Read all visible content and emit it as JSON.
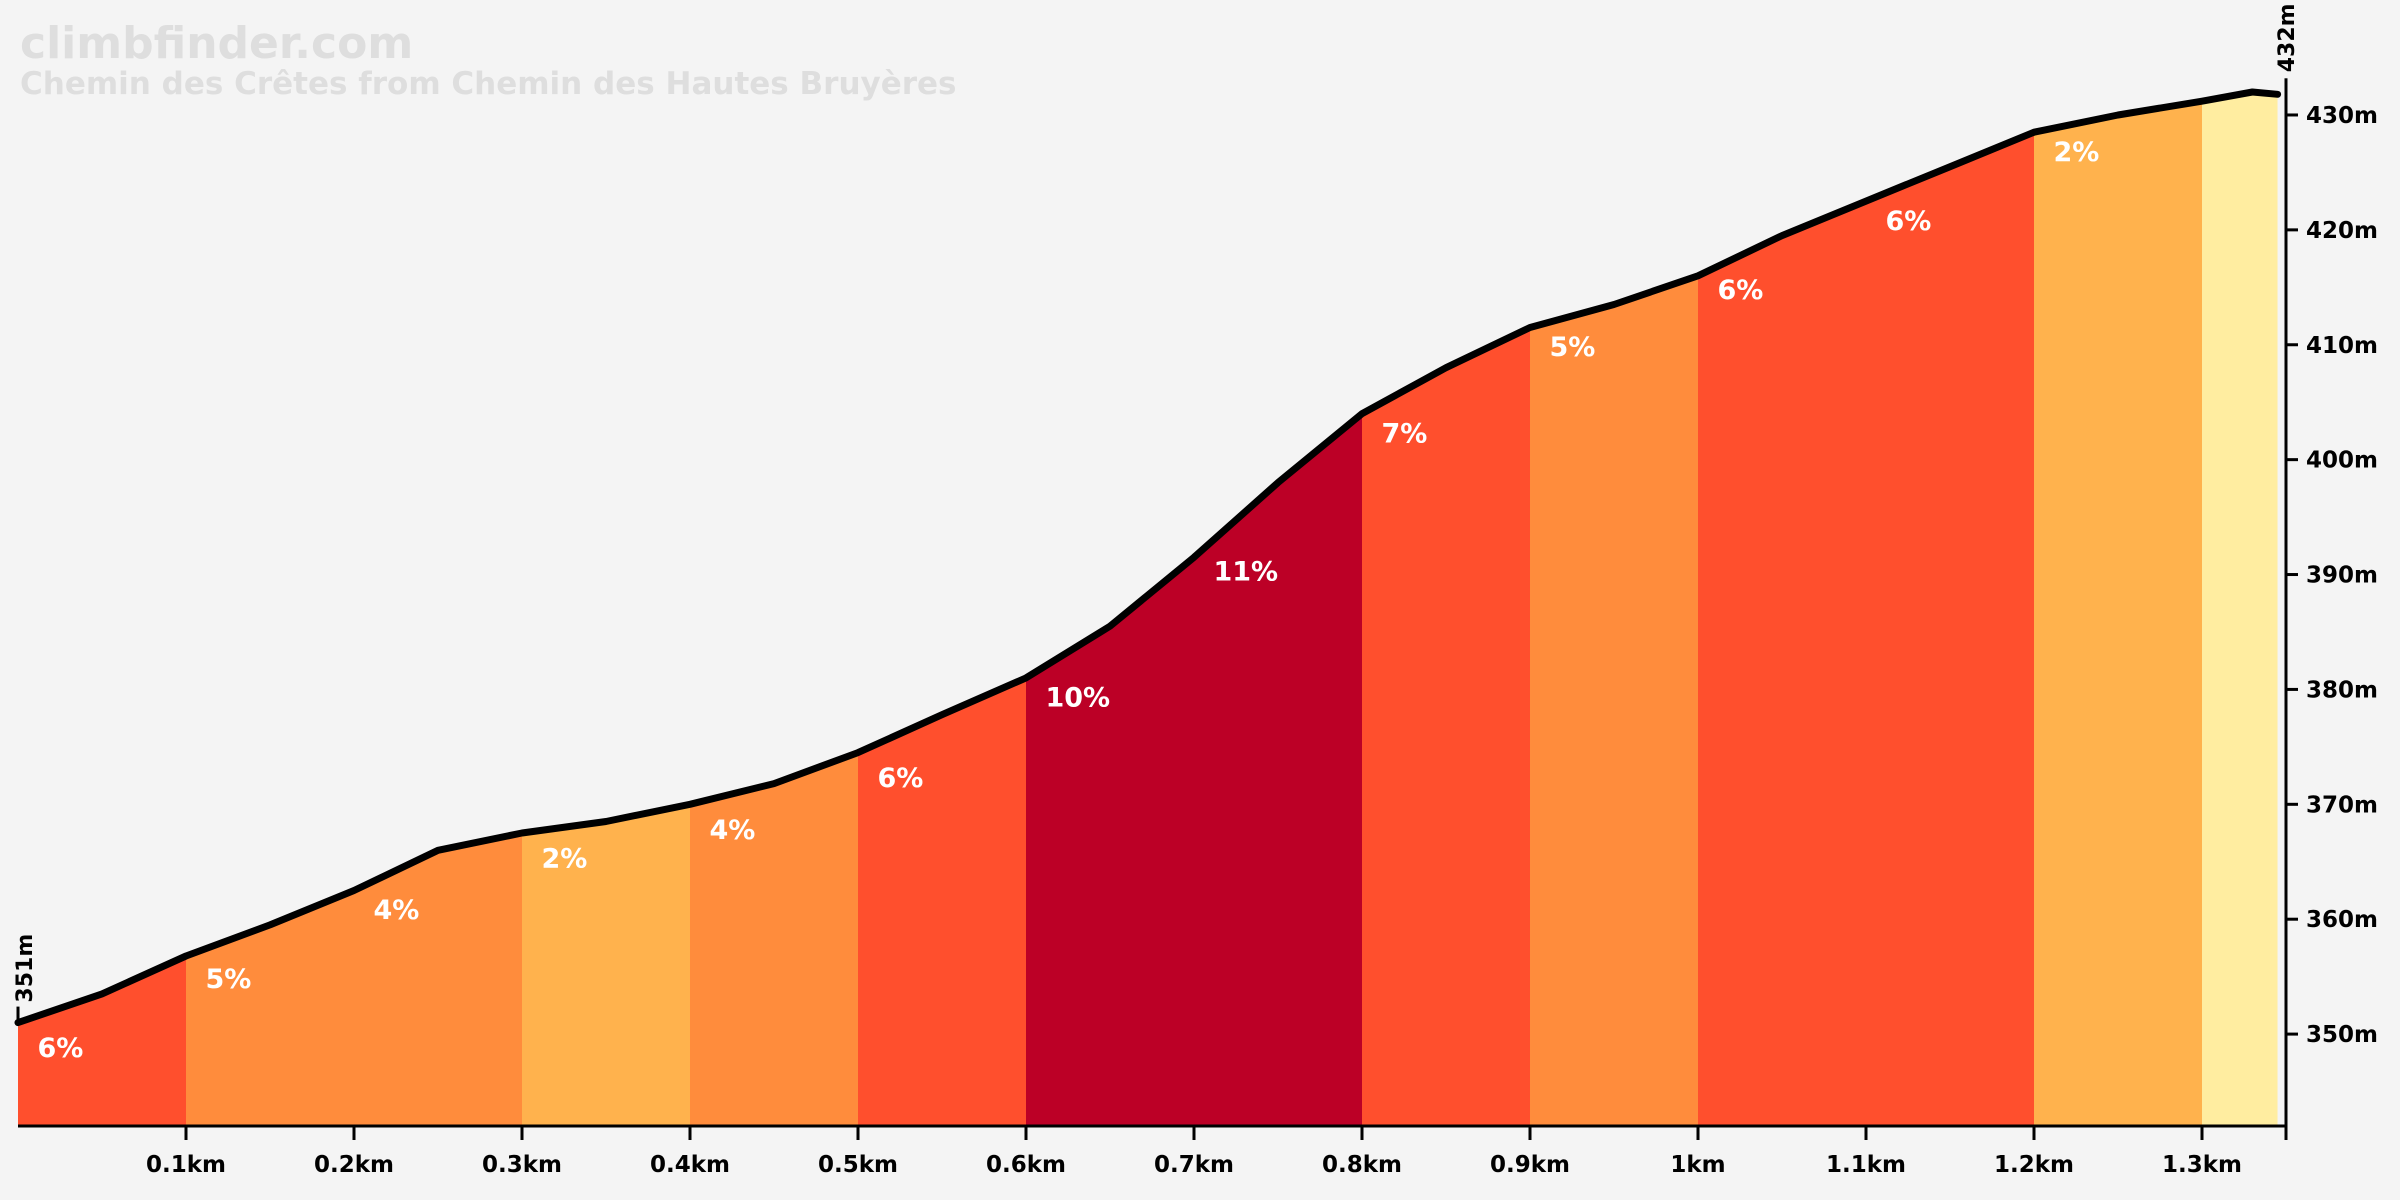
{
  "header": {
    "site": "climbfinder.com",
    "climb_title": "Chemin des Crêtes from Chemin des Hautes Bruyères"
  },
  "chart_data": {
    "type": "area",
    "title": "Chemin des Crêtes from Chemin des Hautes Bruyères",
    "x_unit": "km",
    "y_unit": "m",
    "xlim": [
      0,
      1.35
    ],
    "ylim": [
      342,
      432
    ],
    "x_ticks": [
      {
        "value": 0.1,
        "label": "0.1km"
      },
      {
        "value": 0.2,
        "label": "0.2km"
      },
      {
        "value": 0.3,
        "label": "0.3km"
      },
      {
        "value": 0.4,
        "label": "0.4km"
      },
      {
        "value": 0.5,
        "label": "0.5km"
      },
      {
        "value": 0.6,
        "label": "0.6km"
      },
      {
        "value": 0.7,
        "label": "0.7km"
      },
      {
        "value": 0.8,
        "label": "0.8km"
      },
      {
        "value": 0.9,
        "label": "0.9km"
      },
      {
        "value": 1.0,
        "label": "1km"
      },
      {
        "value": 1.1,
        "label": "1.1km"
      },
      {
        "value": 1.2,
        "label": "1.2km"
      },
      {
        "value": 1.3,
        "label": "1.3km"
      }
    ],
    "y_ticks": [
      {
        "value": 350,
        "label": "350m"
      },
      {
        "value": 360,
        "label": "360m"
      },
      {
        "value": 370,
        "label": "370m"
      },
      {
        "value": 380,
        "label": "380m"
      },
      {
        "value": 390,
        "label": "390m"
      },
      {
        "value": 400,
        "label": "400m"
      },
      {
        "value": 410,
        "label": "410m"
      },
      {
        "value": 420,
        "label": "420m"
      },
      {
        "value": 430,
        "label": "430m"
      }
    ],
    "start_label": "351m",
    "end_label": "432m",
    "profile": [
      [
        0.0,
        351.0
      ],
      [
        0.05,
        353.5
      ],
      [
        0.1,
        356.8
      ],
      [
        0.15,
        359.5
      ],
      [
        0.2,
        362.5
      ],
      [
        0.25,
        366.0
      ],
      [
        0.3,
        367.5
      ],
      [
        0.35,
        368.5
      ],
      [
        0.4,
        370.0
      ],
      [
        0.45,
        371.8
      ],
      [
        0.5,
        374.5
      ],
      [
        0.55,
        377.8
      ],
      [
        0.6,
        381.0
      ],
      [
        0.65,
        385.5
      ],
      [
        0.7,
        391.5
      ],
      [
        0.75,
        398.0
      ],
      [
        0.8,
        404.0
      ],
      [
        0.85,
        408.0
      ],
      [
        0.9,
        411.5
      ],
      [
        0.95,
        413.5
      ],
      [
        1.0,
        416.0
      ],
      [
        1.05,
        419.5
      ],
      [
        1.1,
        422.5
      ],
      [
        1.15,
        425.5
      ],
      [
        1.2,
        428.5
      ],
      [
        1.25,
        430.0
      ],
      [
        1.3,
        431.2
      ],
      [
        1.33,
        432.0
      ],
      [
        1.345,
        431.8
      ]
    ],
    "segments": [
      {
        "start": 0.0,
        "end": 0.1,
        "grade": "6%",
        "color": "#ff4f2d"
      },
      {
        "start": 0.1,
        "end": 0.3,
        "grade": "5%",
        "color": "#ff8c3c"
      },
      {
        "start": 0.3,
        "end": 0.4,
        "grade": "2%",
        "color": "#ffb24d"
      },
      {
        "start": 0.4,
        "end": 0.5,
        "grade": "4%",
        "color": "#ff8c3c"
      },
      {
        "start": 0.5,
        "end": 0.6,
        "grade": "6%",
        "color": "#ff4f2d"
      },
      {
        "start": 0.6,
        "end": 0.8,
        "grade": "10%",
        "color": "#bc0026"
      },
      {
        "start": 0.8,
        "end": 0.9,
        "grade": "7%",
        "color": "#ff4f2d"
      },
      {
        "start": 0.9,
        "end": 1.0,
        "grade": "5%",
        "color": "#ff8c3c"
      },
      {
        "start": 1.0,
        "end": 1.2,
        "grade": "6%",
        "color": "#ff4f2d"
      },
      {
        "start": 1.2,
        "end": 1.3,
        "grade": "2%",
        "color": "#ffb24d"
      },
      {
        "start": 1.3,
        "end": 1.345,
        "grade": "",
        "color": "#ffeda0"
      }
    ],
    "grade_labels": [
      {
        "x": 0.008,
        "y": 348.0,
        "text": "6%"
      },
      {
        "x": 0.108,
        "y": 354.0,
        "text": "5%"
      },
      {
        "x": 0.208,
        "y": 360.0,
        "text": "4%"
      },
      {
        "x": 0.308,
        "y": 364.5,
        "text": "2%"
      },
      {
        "x": 0.408,
        "y": 367.0,
        "text": "4%"
      },
      {
        "x": 0.508,
        "y": 371.5,
        "text": "6%"
      },
      {
        "x": 0.608,
        "y": 378.5,
        "text": "10%"
      },
      {
        "x": 0.708,
        "y": 389.5,
        "text": "11%"
      },
      {
        "x": 0.808,
        "y": 401.5,
        "text": "7%"
      },
      {
        "x": 0.908,
        "y": 409.0,
        "text": "5%"
      },
      {
        "x": 1.008,
        "y": 414.0,
        "text": "6%"
      },
      {
        "x": 1.108,
        "y": 420.0,
        "text": "6%"
      },
      {
        "x": 1.208,
        "y": 426.0,
        "text": "2%"
      }
    ]
  }
}
